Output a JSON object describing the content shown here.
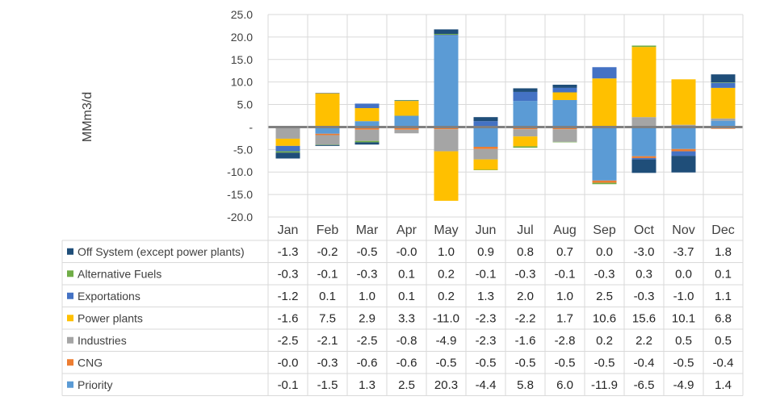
{
  "chart_data": {
    "type": "bar",
    "stacked": true,
    "title": "",
    "xlabel": "",
    "ylabel": "MMm3/d",
    "ylim": [
      -20,
      25
    ],
    "yticks": [
      "25.0",
      "20.0",
      "15.0",
      "10.0",
      "5.0",
      "-",
      "-5.0",
      "-10.0",
      "-15.0",
      "-20.0"
    ],
    "grid": true,
    "legend": "data-table-left",
    "categories": [
      "Jan",
      "Feb",
      "Mar",
      "Apr",
      "May",
      "Jun",
      "Jul",
      "Aug",
      "Sep",
      "Oct",
      "Nov",
      "Dec"
    ],
    "series": [
      {
        "name": "Off System (except power plants)",
        "color": "#1F4E79",
        "values": [
          -1.3,
          -0.2,
          -0.5,
          -0.0,
          1.0,
          0.9,
          0.8,
          0.7,
          0.0,
          -3.0,
          -3.7,
          1.8
        ],
        "labels": [
          "-1.3",
          "-0.2",
          "-0.5",
          "-0.0",
          "1.0",
          "0.9",
          "0.8",
          "0.7",
          "0.0",
          "-3.0",
          "-3.7",
          "1.8"
        ]
      },
      {
        "name": "Alternative Fuels",
        "color": "#70AD47",
        "values": [
          -0.3,
          -0.1,
          -0.3,
          0.1,
          0.2,
          -0.1,
          -0.3,
          -0.1,
          -0.3,
          0.3,
          0.0,
          0.1
        ],
        "labels": [
          "-0.3",
          "-0.1",
          "-0.3",
          "0.1",
          "0.2",
          "-0.1",
          "-0.3",
          "-0.1",
          "-0.3",
          "0.3",
          "0.0",
          "0.1"
        ]
      },
      {
        "name": "Exportations",
        "color": "#4472C4",
        "values": [
          -1.2,
          0.1,
          1.0,
          0.1,
          0.2,
          1.3,
          2.0,
          1.0,
          2.5,
          -0.3,
          -1.0,
          1.1
        ],
        "labels": [
          "-1.2",
          "0.1",
          "1.0",
          "0.1",
          "0.2",
          "1.3",
          "2.0",
          "1.0",
          "2.5",
          "-0.3",
          "-1.0",
          "1.1"
        ]
      },
      {
        "name": "Power plants",
        "color": "#FFC000",
        "values": [
          -1.6,
          7.5,
          2.9,
          3.3,
          -11.0,
          -2.3,
          -2.2,
          1.7,
          10.6,
          15.6,
          10.1,
          6.8
        ],
        "labels": [
          "-1.6",
          "7.5",
          "2.9",
          "3.3",
          "-11.0",
          "-2.3",
          "-2.2",
          "1.7",
          "10.6",
          "15.6",
          "10.1",
          "6.8"
        ]
      },
      {
        "name": "Industries",
        "color": "#A5A5A5",
        "values": [
          -2.5,
          -2.1,
          -2.5,
          -0.8,
          -4.9,
          -2.3,
          -1.6,
          -2.8,
          0.2,
          2.2,
          0.5,
          0.5
        ],
        "labels": [
          "-2.5",
          "-2.1",
          "-2.5",
          "-0.8",
          "-4.9",
          "-2.3",
          "-1.6",
          "-2.8",
          "0.2",
          "2.2",
          "0.5",
          "0.5"
        ]
      },
      {
        "name": "CNG",
        "color": "#ED7D31",
        "values": [
          -0.0,
          -0.3,
          -0.6,
          -0.6,
          -0.5,
          -0.5,
          -0.5,
          -0.5,
          -0.5,
          -0.4,
          -0.5,
          -0.4
        ],
        "labels": [
          "-0.0",
          "-0.3",
          "-0.6",
          "-0.6",
          "-0.5",
          "-0.5",
          "-0.5",
          "-0.5",
          "-0.5",
          "-0.4",
          "-0.5",
          "-0.4"
        ]
      },
      {
        "name": "Priority",
        "color": "#5B9BD5",
        "values": [
          -0.1,
          -1.5,
          1.3,
          2.5,
          20.3,
          -4.4,
          5.8,
          6.0,
          -11.9,
          -6.5,
          -4.9,
          1.4
        ],
        "labels": [
          "-0.1",
          "-1.5",
          "1.3",
          "2.5",
          "20.3",
          "-4.4",
          "5.8",
          "6.0",
          "-11.9",
          "-6.5",
          "-4.9",
          "1.4"
        ]
      }
    ]
  }
}
